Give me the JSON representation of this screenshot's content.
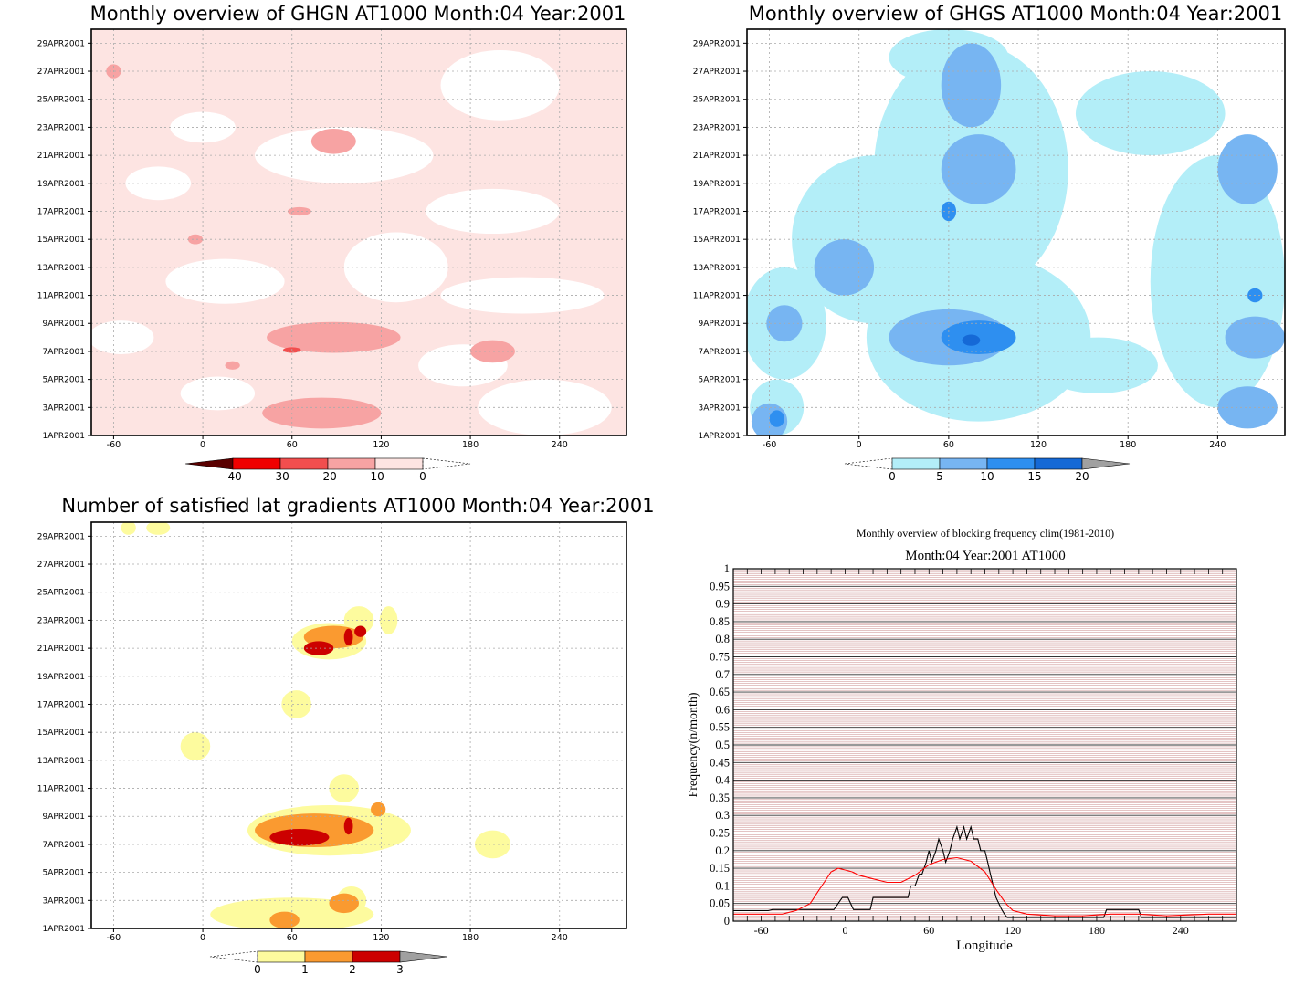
{
  "chart_data": [
    {
      "type": "heatmap",
      "title": "Monthly overview of GHGN AT1000 Month:04 Year:2001",
      "xlim": [
        -75,
        285
      ],
      "x_ticks": [
        "-60",
        "0",
        "60",
        "120",
        "180",
        "240"
      ],
      "x_tick_values": [
        -60,
        0,
        60,
        120,
        180,
        240
      ],
      "ylim": [
        1,
        30
      ],
      "y_ticks": [
        "1APR2001",
        "3APR2001",
        "5APR2001",
        "7APR2001",
        "9APR2001",
        "11APR2001",
        "13APR2001",
        "15APR2001",
        "17APR2001",
        "19APR2001",
        "21APR2001",
        "23APR2001",
        "25APR2001",
        "27APR2001",
        "29APR2001"
      ],
      "y_tick_values": [
        1,
        3,
        5,
        7,
        9,
        11,
        13,
        15,
        17,
        19,
        21,
        23,
        25,
        27,
        29
      ],
      "grid": true,
      "background_color": "#fde4e2",
      "colorbar": {
        "labels": [
          "-40",
          "-30",
          "-20",
          "-10",
          "0"
        ],
        "colors": [
          "#5a0000",
          "#f00000",
          "#f24e4e",
          "#f7a3a3",
          "#fde4e2"
        ],
        "open_end": "right"
      },
      "regions": [
        {
          "x": 0,
          "y": 23,
          "rx": 22,
          "ry": 1.1,
          "level": 0
        },
        {
          "x": 95,
          "y": 21,
          "rx": 60,
          "ry": 2,
          "level": 0
        },
        {
          "x": -30,
          "y": 19,
          "rx": 22,
          "ry": 1.2,
          "level": 0
        },
        {
          "x": 195,
          "y": 17,
          "rx": 45,
          "ry": 1.6,
          "level": 0
        },
        {
          "x": 130,
          "y": 13,
          "rx": 35,
          "ry": 2.5,
          "level": 0
        },
        {
          "x": 15,
          "y": 12,
          "rx": 40,
          "ry": 1.6,
          "level": 0
        },
        {
          "x": 215,
          "y": 11,
          "rx": 55,
          "ry": 1.3,
          "level": 0
        },
        {
          "x": -55,
          "y": 8,
          "rx": 22,
          "ry": 1.2,
          "level": 0
        },
        {
          "x": 175,
          "y": 6,
          "rx": 30,
          "ry": 1.5,
          "level": 0
        },
        {
          "x": 10,
          "y": 4,
          "rx": 25,
          "ry": 1.2,
          "level": 0
        },
        {
          "x": 200,
          "y": 26,
          "rx": 40,
          "ry": 2.5,
          "level": 0
        },
        {
          "x": 230,
          "y": 3,
          "rx": 45,
          "ry": 2,
          "level": 0
        },
        {
          "x": -60,
          "y": 27,
          "rx": 5,
          "ry": 0.5,
          "level": 1
        },
        {
          "x": 88,
          "y": 22,
          "rx": 15,
          "ry": 0.9,
          "level": 1
        },
        {
          "x": -5,
          "y": 15,
          "rx": 5,
          "ry": 0.35,
          "level": 1
        },
        {
          "x": 65,
          "y": 17,
          "rx": 8,
          "ry": 0.3,
          "level": 1
        },
        {
          "x": 88,
          "y": 8,
          "rx": 45,
          "ry": 1.1,
          "level": 1
        },
        {
          "x": 80,
          "y": 2.6,
          "rx": 40,
          "ry": 1.1,
          "level": 1
        },
        {
          "x": 195,
          "y": 7,
          "rx": 15,
          "ry": 0.8,
          "level": 1
        },
        {
          "x": 20,
          "y": 6,
          "rx": 5,
          "ry": 0.3,
          "level": 1
        },
        {
          "x": 60,
          "y": 7.1,
          "rx": 6,
          "ry": 0.2,
          "level": 2
        }
      ]
    },
    {
      "type": "heatmap",
      "title": "Monthly overview of GHGS AT1000 Month:04 Year:2001",
      "xlim": [
        -75,
        285
      ],
      "x_ticks": [
        "-60",
        "0",
        "60",
        "120",
        "180",
        "240"
      ],
      "x_tick_values": [
        -60,
        0,
        60,
        120,
        180,
        240
      ],
      "ylim": [
        1,
        30
      ],
      "y_ticks": [
        "1APR2001",
        "3APR2001",
        "5APR2001",
        "7APR2001",
        "9APR2001",
        "11APR2001",
        "13APR2001",
        "15APR2001",
        "17APR2001",
        "19APR2001",
        "21APR2001",
        "23APR2001",
        "25APR2001",
        "27APR2001",
        "29APR2001"
      ],
      "y_tick_values": [
        1,
        3,
        5,
        7,
        9,
        11,
        13,
        15,
        17,
        19,
        21,
        23,
        25,
        27,
        29
      ],
      "grid": true,
      "background_color": "#ffffff",
      "colorbar": {
        "labels": [
          "0",
          "5",
          "10",
          "15",
          "20"
        ],
        "colors": [
          "#b3eef8",
          "#77b5f2",
          "#2e8ff0",
          "#1569d6",
          "#a0a0a0"
        ],
        "open_end": "left"
      },
      "regions": [
        {
          "x": 10,
          "y": 15,
          "rx": 55,
          "ry": 6,
          "level": 0
        },
        {
          "x": 75,
          "y": 20,
          "rx": 65,
          "ry": 9,
          "level": 0
        },
        {
          "x": 80,
          "y": 8,
          "rx": 75,
          "ry": 6,
          "level": 0
        },
        {
          "x": -50,
          "y": 9,
          "rx": 28,
          "ry": 4,
          "level": 0
        },
        {
          "x": 240,
          "y": 12,
          "rx": 45,
          "ry": 9,
          "level": 0
        },
        {
          "x": 195,
          "y": 24,
          "rx": 50,
          "ry": 3,
          "level": 0
        },
        {
          "x": 60,
          "y": 28,
          "rx": 40,
          "ry": 2,
          "level": 0
        },
        {
          "x": -55,
          "y": 3,
          "rx": 18,
          "ry": 2,
          "level": 0
        },
        {
          "x": 160,
          "y": 6,
          "rx": 40,
          "ry": 2,
          "level": 0
        },
        {
          "x": 75,
          "y": 26,
          "rx": 20,
          "ry": 3,
          "level": 1
        },
        {
          "x": 80,
          "y": 20,
          "rx": 25,
          "ry": 2.5,
          "level": 1
        },
        {
          "x": 60,
          "y": 8,
          "rx": 40,
          "ry": 2,
          "level": 1
        },
        {
          "x": -10,
          "y": 13,
          "rx": 20,
          "ry": 2,
          "level": 1
        },
        {
          "x": -50,
          "y": 9,
          "rx": 12,
          "ry": 1.3,
          "level": 1
        },
        {
          "x": 260,
          "y": 20,
          "rx": 20,
          "ry": 2.5,
          "level": 1
        },
        {
          "x": 265,
          "y": 8,
          "rx": 20,
          "ry": 1.5,
          "level": 1
        },
        {
          "x": 260,
          "y": 3,
          "rx": 20,
          "ry": 1.5,
          "level": 1
        },
        {
          "x": -60,
          "y": 2,
          "rx": 12,
          "ry": 1.3,
          "level": 1
        },
        {
          "x": 80,
          "y": 8,
          "rx": 25,
          "ry": 1.2,
          "level": 2
        },
        {
          "x": 60,
          "y": 17,
          "rx": 5,
          "ry": 0.7,
          "level": 2
        },
        {
          "x": 265,
          "y": 11,
          "rx": 5,
          "ry": 0.5,
          "level": 2
        },
        {
          "x": -55,
          "y": 2.2,
          "rx": 5,
          "ry": 0.6,
          "level": 2
        },
        {
          "x": 75,
          "y": 7.8,
          "rx": 6,
          "ry": 0.4,
          "level": 3
        }
      ]
    },
    {
      "type": "heatmap",
      "title": "Number of satisfied lat gradients AT1000 Month:04 Year:2001",
      "xlim": [
        -75,
        285
      ],
      "x_ticks": [
        "-60",
        "0",
        "60",
        "120",
        "180",
        "240"
      ],
      "x_tick_values": [
        -60,
        0,
        60,
        120,
        180,
        240
      ],
      "ylim": [
        1,
        30
      ],
      "y_ticks": [
        "1APR2001",
        "3APR2001",
        "5APR2001",
        "7APR2001",
        "9APR2001",
        "11APR2001",
        "13APR2001",
        "15APR2001",
        "17APR2001",
        "19APR2001",
        "21APR2001",
        "23APR2001",
        "25APR2001",
        "27APR2001",
        "29APR2001"
      ],
      "y_tick_values": [
        1,
        3,
        5,
        7,
        9,
        11,
        13,
        15,
        17,
        19,
        21,
        23,
        25,
        27,
        29
      ],
      "grid": true,
      "background_color": "#ffffff",
      "colorbar": {
        "labels": [
          "0",
          "1",
          "2",
          "3"
        ],
        "colors": [
          "#fdfb9e",
          "#fa9a30",
          "#cc0000",
          "#a0a0a0"
        ],
        "open_end": "left"
      },
      "regions": [
        {
          "x": -50,
          "y": 29.6,
          "rx": 5,
          "ry": 0.5,
          "level": 0
        },
        {
          "x": -30,
          "y": 29.6,
          "rx": 8,
          "ry": 0.5,
          "level": 0
        },
        {
          "x": 85,
          "y": 21.5,
          "rx": 25,
          "ry": 1.3,
          "level": 0
        },
        {
          "x": 105,
          "y": 23,
          "rx": 10,
          "ry": 1,
          "level": 0
        },
        {
          "x": 125,
          "y": 23,
          "rx": 6,
          "ry": 1,
          "level": 0
        },
        {
          "x": 63,
          "y": 17,
          "rx": 10,
          "ry": 1,
          "level": 0
        },
        {
          "x": -5,
          "y": 14,
          "rx": 10,
          "ry": 1,
          "level": 0
        },
        {
          "x": 95,
          "y": 11,
          "rx": 10,
          "ry": 1,
          "level": 0
        },
        {
          "x": 85,
          "y": 8,
          "rx": 55,
          "ry": 1.8,
          "level": 0
        },
        {
          "x": 195,
          "y": 7,
          "rx": 12,
          "ry": 1,
          "level": 0
        },
        {
          "x": 60,
          "y": 2,
          "rx": 55,
          "ry": 1.2,
          "level": 0
        },
        {
          "x": 100,
          "y": 3,
          "rx": 10,
          "ry": 1,
          "level": 0
        },
        {
          "x": 88,
          "y": 21.8,
          "rx": 20,
          "ry": 0.8,
          "level": 1
        },
        {
          "x": 75,
          "y": 8,
          "rx": 40,
          "ry": 1.2,
          "level": 1
        },
        {
          "x": 95,
          "y": 2.8,
          "rx": 10,
          "ry": 0.7,
          "level": 1
        },
        {
          "x": 55,
          "y": 1.6,
          "rx": 10,
          "ry": 0.6,
          "level": 1
        },
        {
          "x": 118,
          "y": 9.5,
          "rx": 5,
          "ry": 0.5,
          "level": 1
        },
        {
          "x": 78,
          "y": 21,
          "rx": 10,
          "ry": 0.5,
          "level": 2
        },
        {
          "x": 98,
          "y": 21.8,
          "rx": 3,
          "ry": 0.6,
          "level": 2
        },
        {
          "x": 106,
          "y": 22.2,
          "rx": 4,
          "ry": 0.4,
          "level": 2
        },
        {
          "x": 65,
          "y": 7.5,
          "rx": 20,
          "ry": 0.6,
          "level": 2
        },
        {
          "x": 98,
          "y": 8.3,
          "rx": 3,
          "ry": 0.6,
          "level": 2
        }
      ]
    },
    {
      "type": "line",
      "title": "Monthly overview of blocking frequency clim(1981-2010)",
      "subtitle": "Month:04 Year:2001  AT1000",
      "xlabel": "Longitude",
      "ylabel": "Frequency(n/month)",
      "xlim": [
        -80,
        280
      ],
      "ylim": [
        0,
        1
      ],
      "x_ticks": [
        "-60",
        "0",
        "60",
        "120",
        "180",
        "240"
      ],
      "x_tick_values": [
        -60,
        0,
        60,
        120,
        180,
        240
      ],
      "y_ticks": [
        "0",
        "0.05",
        "0.1",
        "0.15",
        "0.2",
        "0.25",
        "0.3",
        "0.35",
        "0.4",
        "0.45",
        "0.5",
        "0.55",
        "0.6",
        "0.65",
        "0.7",
        "0.75",
        "0.8",
        "0.85",
        "0.9",
        "0.95",
        "1"
      ],
      "y_tick_values": [
        0,
        0.05,
        0.1,
        0.15,
        0.2,
        0.25,
        0.3,
        0.35,
        0.4,
        0.45,
        0.5,
        0.55,
        0.6,
        0.65,
        0.7,
        0.75,
        0.8,
        0.85,
        0.9,
        0.95,
        1
      ],
      "grid": true,
      "series": [
        {
          "color": "#000000",
          "x": [
            -80,
            -55,
            -52,
            -50,
            -47,
            -45,
            -35,
            -32,
            -25,
            -22,
            -20,
            -12,
            -10,
            -8,
            -2,
            0,
            2,
            6,
            8,
            10,
            18,
            20,
            45,
            47,
            50,
            53,
            55,
            58,
            60,
            62,
            65,
            67,
            70,
            72,
            75,
            77,
            80,
            82,
            85,
            87,
            90,
            92,
            95,
            97,
            100,
            102,
            104,
            106,
            108,
            110,
            112,
            114,
            116,
            120,
            185,
            187,
            210,
            212,
            280
          ],
          "y": [
            0.03,
            0.03,
            0.033,
            0.033,
            0.033,
            0.033,
            0.033,
            0.033,
            0.033,
            0.033,
            0.033,
            0.033,
            0.033,
            0.033,
            0.067,
            0.067,
            0.067,
            0.033,
            0.033,
            0.033,
            0.033,
            0.067,
            0.067,
            0.1,
            0.1,
            0.133,
            0.133,
            0.167,
            0.2,
            0.167,
            0.2,
            0.233,
            0.2,
            0.167,
            0.2,
            0.233,
            0.267,
            0.233,
            0.267,
            0.233,
            0.267,
            0.233,
            0.233,
            0.2,
            0.2,
            0.167,
            0.133,
            0.1,
            0.067,
            0.05,
            0.033,
            0.02,
            0.01,
            0.01,
            0.01,
            0.033,
            0.033,
            0.01,
            0.01
          ]
        },
        {
          "color": "#ff0000",
          "x": [
            -80,
            -60,
            -45,
            -35,
            -25,
            -20,
            -15,
            -10,
            -5,
            0,
            5,
            10,
            20,
            30,
            40,
            50,
            60,
            70,
            80,
            90,
            100,
            108,
            115,
            120,
            130,
            150,
            170,
            190,
            210,
            230,
            260,
            280
          ],
          "y": [
            0.02,
            0.02,
            0.02,
            0.03,
            0.05,
            0.08,
            0.11,
            0.14,
            0.15,
            0.145,
            0.14,
            0.13,
            0.12,
            0.11,
            0.11,
            0.13,
            0.16,
            0.175,
            0.18,
            0.17,
            0.14,
            0.09,
            0.05,
            0.03,
            0.02,
            0.015,
            0.015,
            0.02,
            0.02,
            0.015,
            0.02,
            0.02
          ]
        }
      ]
    }
  ]
}
